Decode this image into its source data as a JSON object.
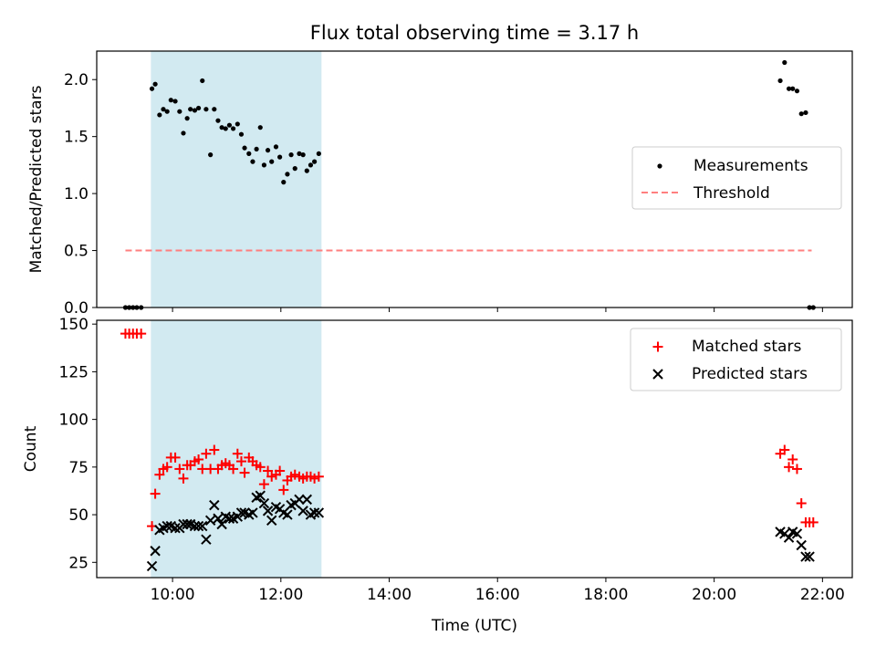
{
  "title": "Flux total observing time = 3.17 h",
  "colors": {
    "shade": "#add8e6",
    "measurement": "#000000",
    "threshold": "#ff7f7f",
    "matched": "#ff0000",
    "predicted": "#000000"
  },
  "chart_data": [
    {
      "type": "scatter",
      "ylabel": "Matched/Predicted stars",
      "xlim": [
        8.6,
        22.55
      ],
      "ylim": [
        0,
        2.25
      ],
      "yticks": [
        0.0,
        0.5,
        1.0,
        1.5,
        2.0
      ],
      "ytick_labels": [
        "0.0",
        "0.5",
        "1.0",
        "1.5",
        "2.0"
      ],
      "shaded_span": [
        9.6,
        12.75
      ],
      "legend": {
        "position": "center-right",
        "entries": [
          "Measurements",
          "Threshold"
        ]
      },
      "threshold": {
        "name": "Threshold",
        "value": 0.5,
        "x_range": [
          9.13,
          21.8
        ]
      },
      "series": [
        {
          "name": "Measurements",
          "marker": "dot",
          "x": [
            9.13,
            9.2,
            9.27,
            9.34,
            9.42,
            9.62,
            9.68,
            9.76,
            9.83,
            9.9,
            9.97,
            10.05,
            10.13,
            10.2,
            10.27,
            10.33,
            10.41,
            10.48,
            10.55,
            10.62,
            10.7,
            10.77,
            10.84,
            10.91,
            10.98,
            11.05,
            11.12,
            11.2,
            11.27,
            11.33,
            11.41,
            11.48,
            11.55,
            11.62,
            11.69,
            11.76,
            11.83,
            11.91,
            11.98,
            12.05,
            12.12,
            12.19,
            12.26,
            12.34,
            12.41,
            12.48,
            12.55,
            12.62,
            12.7,
            21.22,
            21.3,
            21.38,
            21.45,
            21.53,
            21.61,
            21.69,
            21.76,
            21.83
          ],
          "y": [
            0.0,
            0.0,
            0.0,
            0.0,
            0.0,
            1.92,
            1.96,
            1.69,
            1.74,
            1.72,
            1.82,
            1.81,
            1.72,
            1.53,
            1.66,
            1.74,
            1.73,
            1.75,
            1.99,
            1.74,
            1.34,
            1.74,
            1.64,
            1.58,
            1.57,
            1.6,
            1.57,
            1.61,
            1.52,
            1.4,
            1.35,
            1.28,
            1.39,
            1.58,
            1.25,
            1.38,
            1.28,
            1.41,
            1.32,
            1.1,
            1.17,
            1.34,
            1.22,
            1.35,
            1.34,
            1.2,
            1.25,
            1.28,
            1.35,
            1.99,
            2.15,
            1.92,
            1.92,
            1.9,
            1.7,
            1.71,
            0.0,
            0.0
          ]
        }
      ]
    },
    {
      "type": "scatter",
      "xlabel": "Time (UTC)",
      "ylabel": "Count",
      "xlim": [
        8.6,
        22.55
      ],
      "ylim": [
        17,
        152
      ],
      "xticks": [
        10,
        12,
        14,
        16,
        18,
        20,
        22
      ],
      "xtick_labels": [
        "10:00",
        "12:00",
        "14:00",
        "16:00",
        "18:00",
        "20:00",
        "22:00"
      ],
      "yticks": [
        25,
        50,
        75,
        100,
        125,
        150
      ],
      "ytick_labels": [
        "25",
        "50",
        "75",
        "100",
        "125",
        "150"
      ],
      "shaded_span": [
        9.6,
        12.75
      ],
      "legend": {
        "position": "top-right",
        "entries": [
          "Matched stars",
          "Predicted stars"
        ]
      },
      "series": [
        {
          "name": "Matched stars",
          "marker": "plus",
          "x": [
            9.13,
            9.2,
            9.27,
            9.34,
            9.42,
            9.62,
            9.68,
            9.76,
            9.83,
            9.9,
            9.97,
            10.05,
            10.13,
            10.2,
            10.27,
            10.33,
            10.41,
            10.48,
            10.55,
            10.62,
            10.7,
            10.77,
            10.84,
            10.91,
            10.98,
            11.05,
            11.12,
            11.2,
            11.27,
            11.33,
            11.41,
            11.48,
            11.55,
            11.62,
            11.69,
            11.76,
            11.83,
            11.91,
            11.98,
            12.05,
            12.12,
            12.19,
            12.26,
            12.34,
            12.41,
            12.48,
            12.55,
            12.62,
            12.7,
            21.22,
            21.3,
            21.38,
            21.45,
            21.53,
            21.61,
            21.69,
            21.76,
            21.83
          ],
          "y": [
            145,
            145,
            145,
            145,
            145,
            44,
            61,
            71,
            74,
            75,
            80,
            80,
            74,
            69,
            76,
            76,
            78,
            79,
            74,
            82,
            74,
            84,
            74,
            76,
            77,
            76,
            74,
            82,
            78,
            72,
            80,
            78,
            76,
            75,
            66,
            73,
            70,
            71,
            73,
            63,
            68,
            70,
            71,
            70,
            69,
            70,
            70,
            69,
            70,
            82,
            84,
            75,
            79,
            74,
            56,
            46,
            46,
            46
          ]
        },
        {
          "name": "Predicted stars",
          "marker": "x",
          "x": [
            9.62,
            9.68,
            9.76,
            9.83,
            9.9,
            9.97,
            10.05,
            10.13,
            10.2,
            10.27,
            10.33,
            10.41,
            10.48,
            10.55,
            10.62,
            10.7,
            10.77,
            10.84,
            10.91,
            10.98,
            11.05,
            11.12,
            11.2,
            11.27,
            11.33,
            11.41,
            11.48,
            11.55,
            11.62,
            11.69,
            11.76,
            11.83,
            11.91,
            11.98,
            12.05,
            12.12,
            12.19,
            12.26,
            12.34,
            12.41,
            12.48,
            12.55,
            12.62,
            12.7,
            21.22,
            21.3,
            21.38,
            21.45,
            21.53,
            21.61,
            21.69,
            21.76
          ],
          "y": [
            23,
            31,
            42,
            43,
            44,
            44,
            43,
            43,
            45,
            45,
            45,
            44,
            44,
            44,
            37,
            47,
            55,
            48,
            45,
            49,
            48,
            48,
            49,
            51,
            51,
            50,
            51,
            59,
            60,
            56,
            52,
            47,
            54,
            53,
            51,
            50,
            55,
            56,
            58,
            52,
            58,
            50,
            51,
            51,
            41,
            40,
            38,
            41,
            40,
            34,
            28,
            28
          ]
        }
      ]
    }
  ]
}
